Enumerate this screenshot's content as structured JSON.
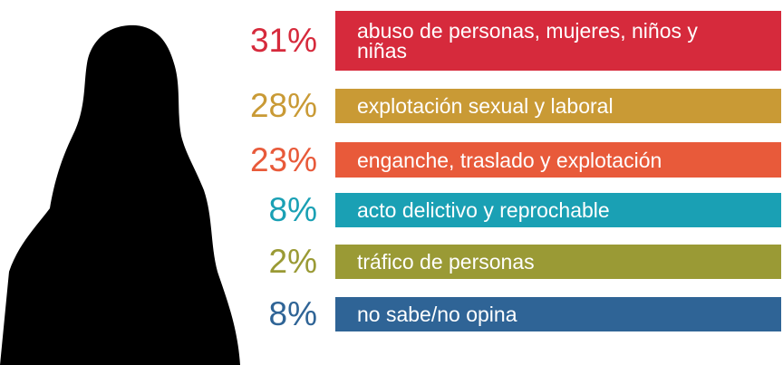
{
  "chart_data": {
    "type": "infographic",
    "categories": [
      "abuso de personas, mujeres, niños y niñas",
      "explotación sexual y laboral",
      "enganche, traslado y explotación",
      "acto delictivo y reprochable",
      "tráfico de personas",
      "no sabe/no opina"
    ],
    "values": [
      31,
      28,
      23,
      8,
      2,
      8
    ],
    "value_labels": [
      "31%",
      "28%",
      "23%",
      "8%",
      "2%",
      "8%"
    ],
    "colors": [
      "#d62a3c",
      "#c99a35",
      "#e85a3a",
      "#1aa0b4",
      "#9a9a35",
      "#2f6496"
    ]
  }
}
